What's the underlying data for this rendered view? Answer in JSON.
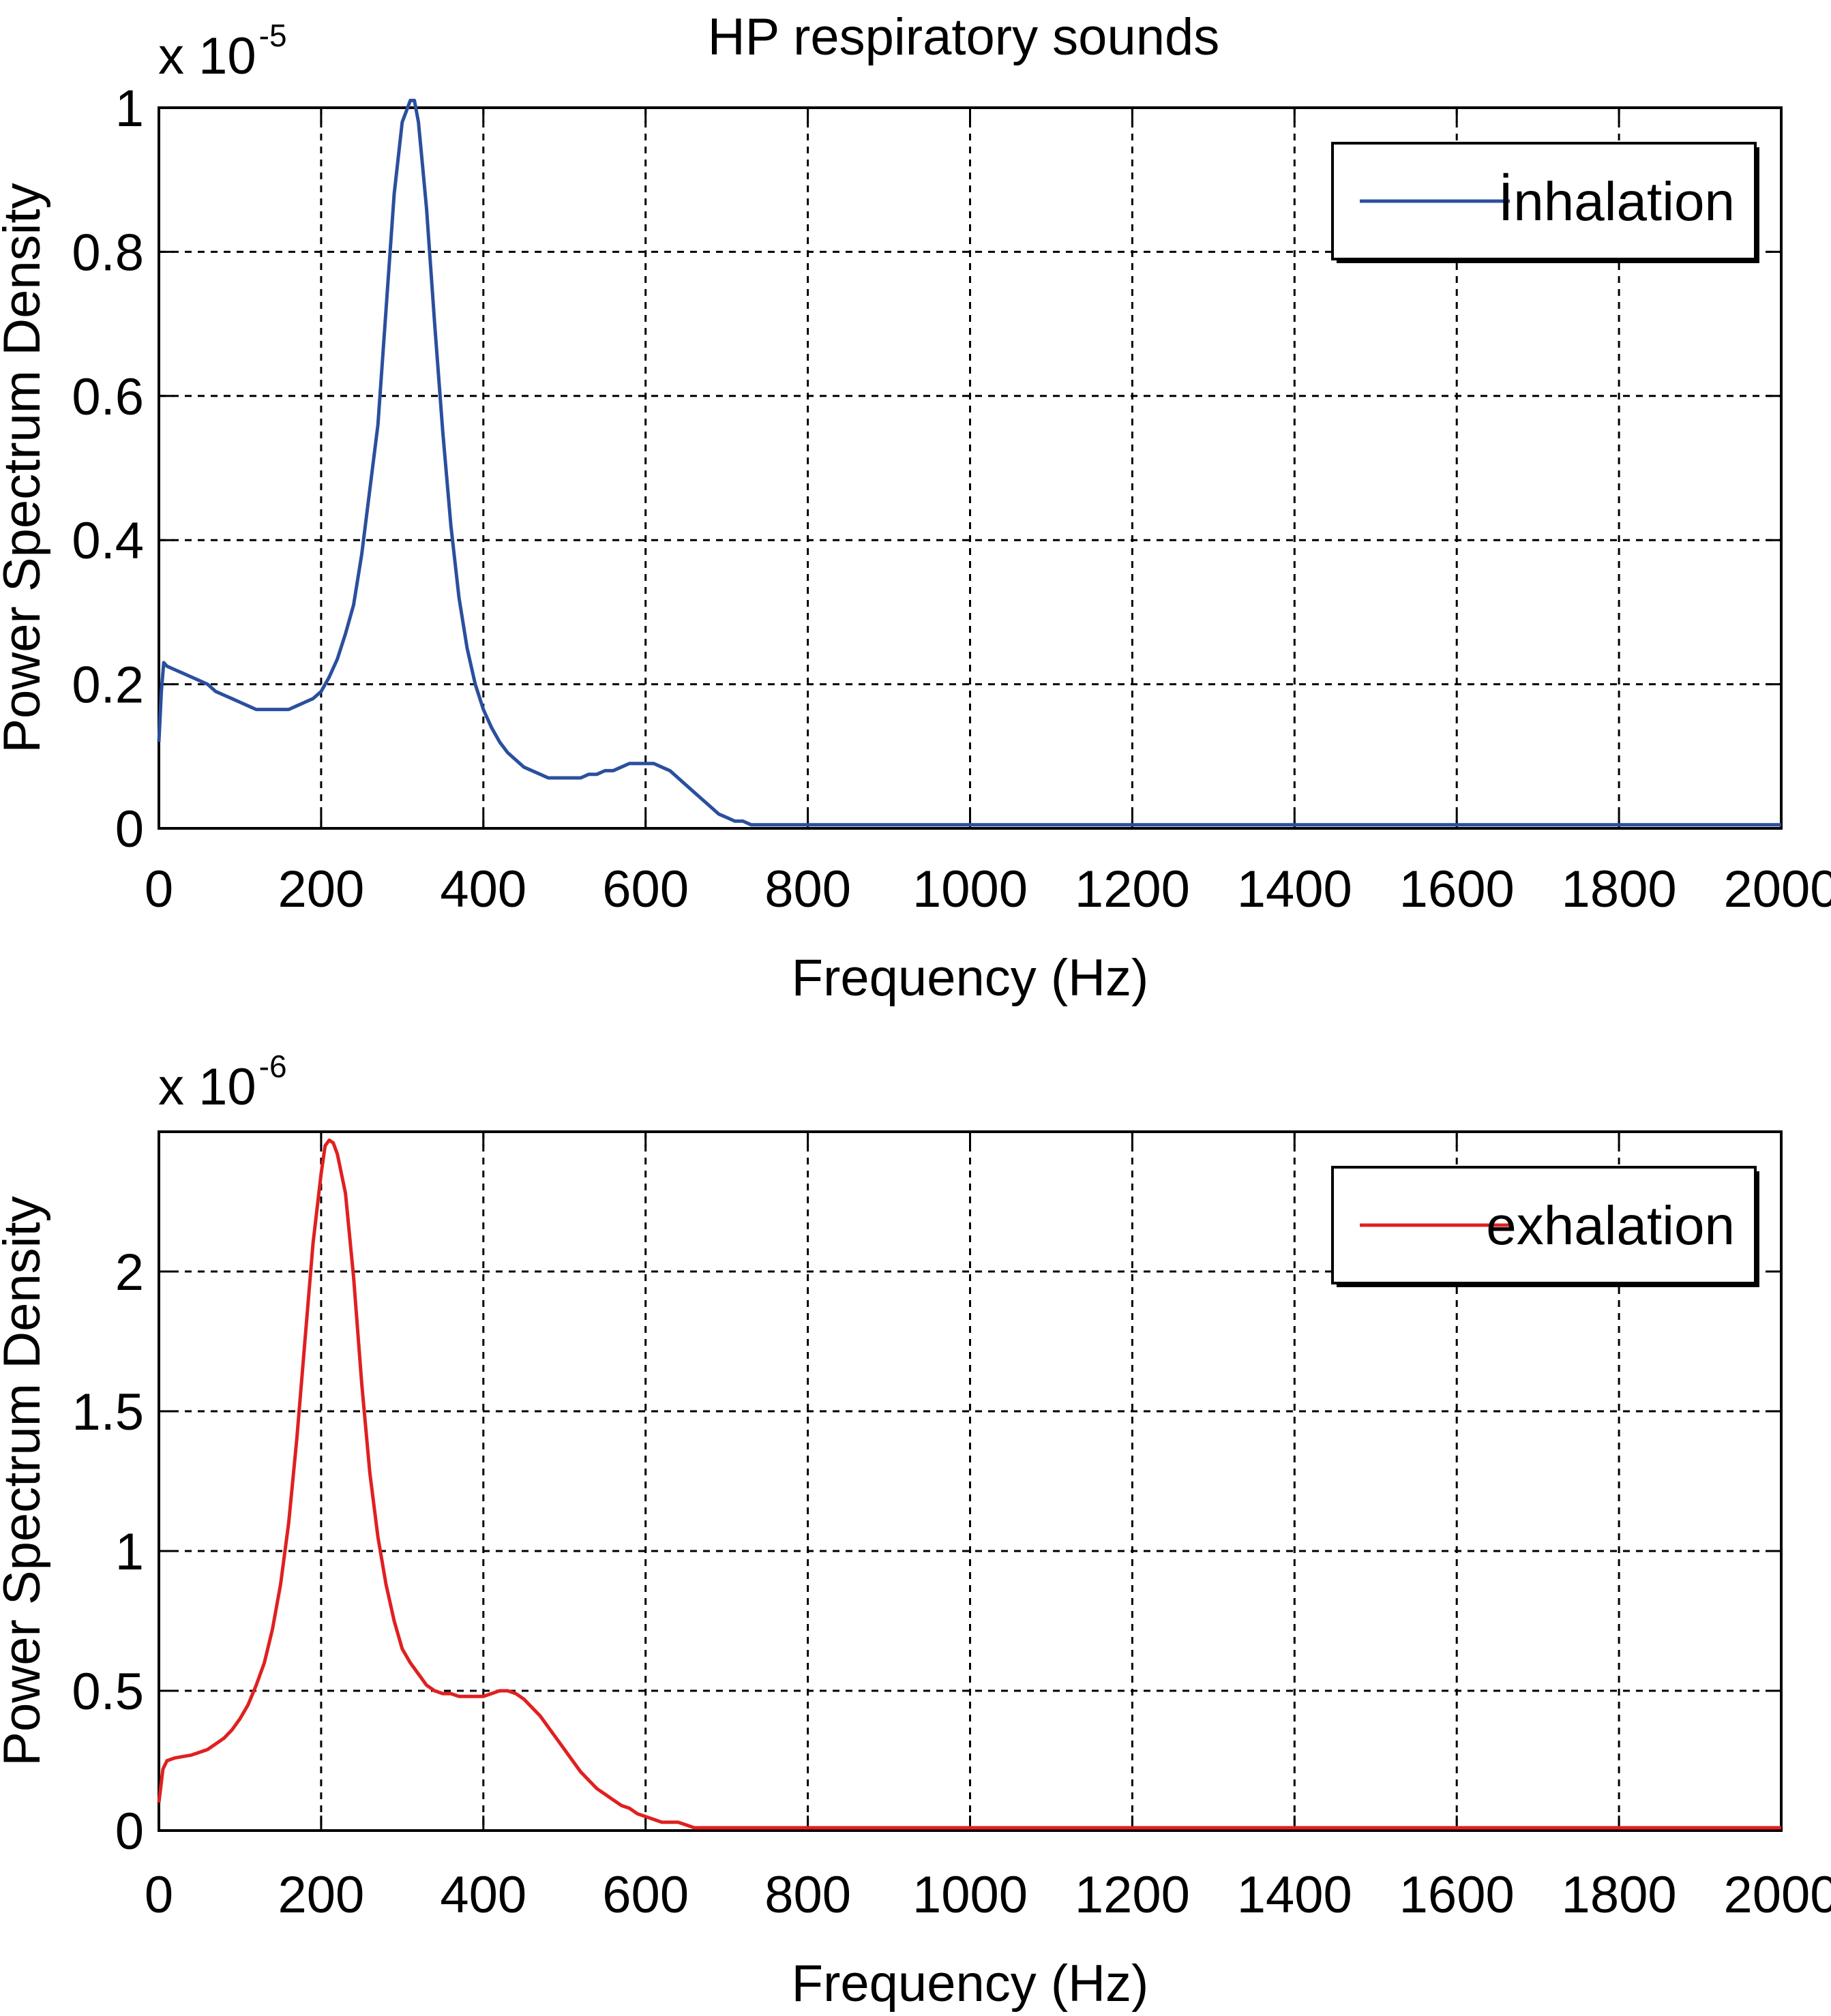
{
  "title": "HP respiratory sounds",
  "chart_data": [
    {
      "type": "line",
      "xlabel": "Frequency (Hz)",
      "ylabel": "Power Spectrum Density",
      "y_exponent_base": "x 10",
      "y_exponent_power": "-5",
      "xlim": [
        0,
        2000
      ],
      "ylim": [
        0,
        1
      ],
      "x_ticks": [
        "0",
        "200",
        "400",
        "600",
        "800",
        "1000",
        "1200",
        "1400",
        "1600",
        "1800",
        "2000"
      ],
      "y_ticks": [
        "0",
        "0.2",
        "0.4",
        "0.6",
        "0.8",
        "1"
      ],
      "grid": true,
      "legend_position": "top-right",
      "series": [
        {
          "name": "İnhalation",
          "color": "#2b4f9e",
          "x": [
            0,
            3,
            6,
            10,
            20,
            30,
            40,
            50,
            60,
            70,
            80,
            90,
            100,
            110,
            120,
            130,
            140,
            150,
            160,
            170,
            180,
            190,
            200,
            210,
            220,
            230,
            240,
            250,
            260,
            270,
            280,
            290,
            300,
            310,
            315,
            320,
            325,
            330,
            340,
            350,
            360,
            370,
            380,
            390,
            400,
            410,
            420,
            430,
            440,
            450,
            460,
            470,
            480,
            490,
            500,
            510,
            520,
            530,
            540,
            550,
            560,
            570,
            580,
            590,
            600,
            610,
            620,
            630,
            640,
            650,
            660,
            670,
            680,
            690,
            700,
            710,
            720,
            730,
            740,
            750,
            800,
            900,
            1000,
            1200,
            1400,
            1600,
            1800,
            2000
          ],
          "y": [
            0.12,
            0.19,
            0.23,
            0.225,
            0.22,
            0.215,
            0.21,
            0.205,
            0.2,
            0.19,
            0.185,
            0.18,
            0.175,
            0.17,
            0.165,
            0.165,
            0.165,
            0.165,
            0.165,
            0.17,
            0.175,
            0.18,
            0.19,
            0.21,
            0.235,
            0.27,
            0.31,
            0.38,
            0.47,
            0.56,
            0.72,
            0.88,
            0.98,
            1.01,
            1.01,
            0.98,
            0.92,
            0.86,
            0.7,
            0.55,
            0.42,
            0.32,
            0.25,
            0.2,
            0.165,
            0.14,
            0.12,
            0.105,
            0.095,
            0.085,
            0.08,
            0.075,
            0.07,
            0.07,
            0.07,
            0.07,
            0.07,
            0.075,
            0.075,
            0.08,
            0.08,
            0.085,
            0.09,
            0.09,
            0.09,
            0.09,
            0.085,
            0.08,
            0.07,
            0.06,
            0.05,
            0.04,
            0.03,
            0.02,
            0.015,
            0.01,
            0.01,
            0.005,
            0.005,
            0.005,
            0.005,
            0.005,
            0.005,
            0.005,
            0.005,
            0.005,
            0.005,
            0.005
          ]
        }
      ]
    },
    {
      "type": "line",
      "xlabel": "Frequency (Hz)",
      "ylabel": "Power Spectrum Density",
      "y_exponent_base": "x 10",
      "y_exponent_power": "-6",
      "xlim": [
        0,
        2000
      ],
      "ylim": [
        0,
        2.5
      ],
      "x_ticks": [
        "0",
        "200",
        "400",
        "600",
        "800",
        "1000",
        "1200",
        "1400",
        "1600",
        "1800",
        "2000"
      ],
      "y_ticks": [
        "0",
        "0.5",
        "1",
        "1.5",
        "2"
      ],
      "grid": true,
      "legend_position": "top-right",
      "series": [
        {
          "name": "exhalation",
          "color": "#e02020",
          "x": [
            0,
            5,
            10,
            20,
            30,
            40,
            50,
            60,
            70,
            80,
            90,
            100,
            110,
            120,
            130,
            140,
            150,
            160,
            170,
            180,
            190,
            200,
            205,
            210,
            215,
            220,
            230,
            240,
            250,
            260,
            270,
            280,
            290,
            300,
            310,
            320,
            330,
            340,
            350,
            360,
            370,
            380,
            390,
            400,
            410,
            420,
            430,
            440,
            450,
            460,
            470,
            480,
            490,
            500,
            510,
            520,
            530,
            540,
            550,
            560,
            570,
            580,
            590,
            600,
            610,
            620,
            630,
            640,
            650,
            660,
            700,
            800,
            1000,
            1200,
            1400,
            1600,
            1800,
            2000
          ],
          "y": [
            0.1,
            0.22,
            0.25,
            0.26,
            0.265,
            0.27,
            0.28,
            0.29,
            0.31,
            0.33,
            0.36,
            0.4,
            0.45,
            0.52,
            0.6,
            0.72,
            0.88,
            1.1,
            1.4,
            1.75,
            2.1,
            2.35,
            2.45,
            2.47,
            2.46,
            2.42,
            2.28,
            1.98,
            1.6,
            1.28,
            1.05,
            0.88,
            0.75,
            0.65,
            0.6,
            0.56,
            0.52,
            0.5,
            0.49,
            0.49,
            0.48,
            0.48,
            0.48,
            0.48,
            0.49,
            0.5,
            0.5,
            0.49,
            0.47,
            0.44,
            0.41,
            0.37,
            0.33,
            0.29,
            0.25,
            0.21,
            0.18,
            0.15,
            0.13,
            0.11,
            0.09,
            0.08,
            0.06,
            0.05,
            0.04,
            0.03,
            0.03,
            0.03,
            0.02,
            0.01,
            0.01,
            0.01,
            0.01,
            0.01,
            0.01,
            0.01,
            0.01,
            0.01
          ]
        }
      ]
    }
  ]
}
